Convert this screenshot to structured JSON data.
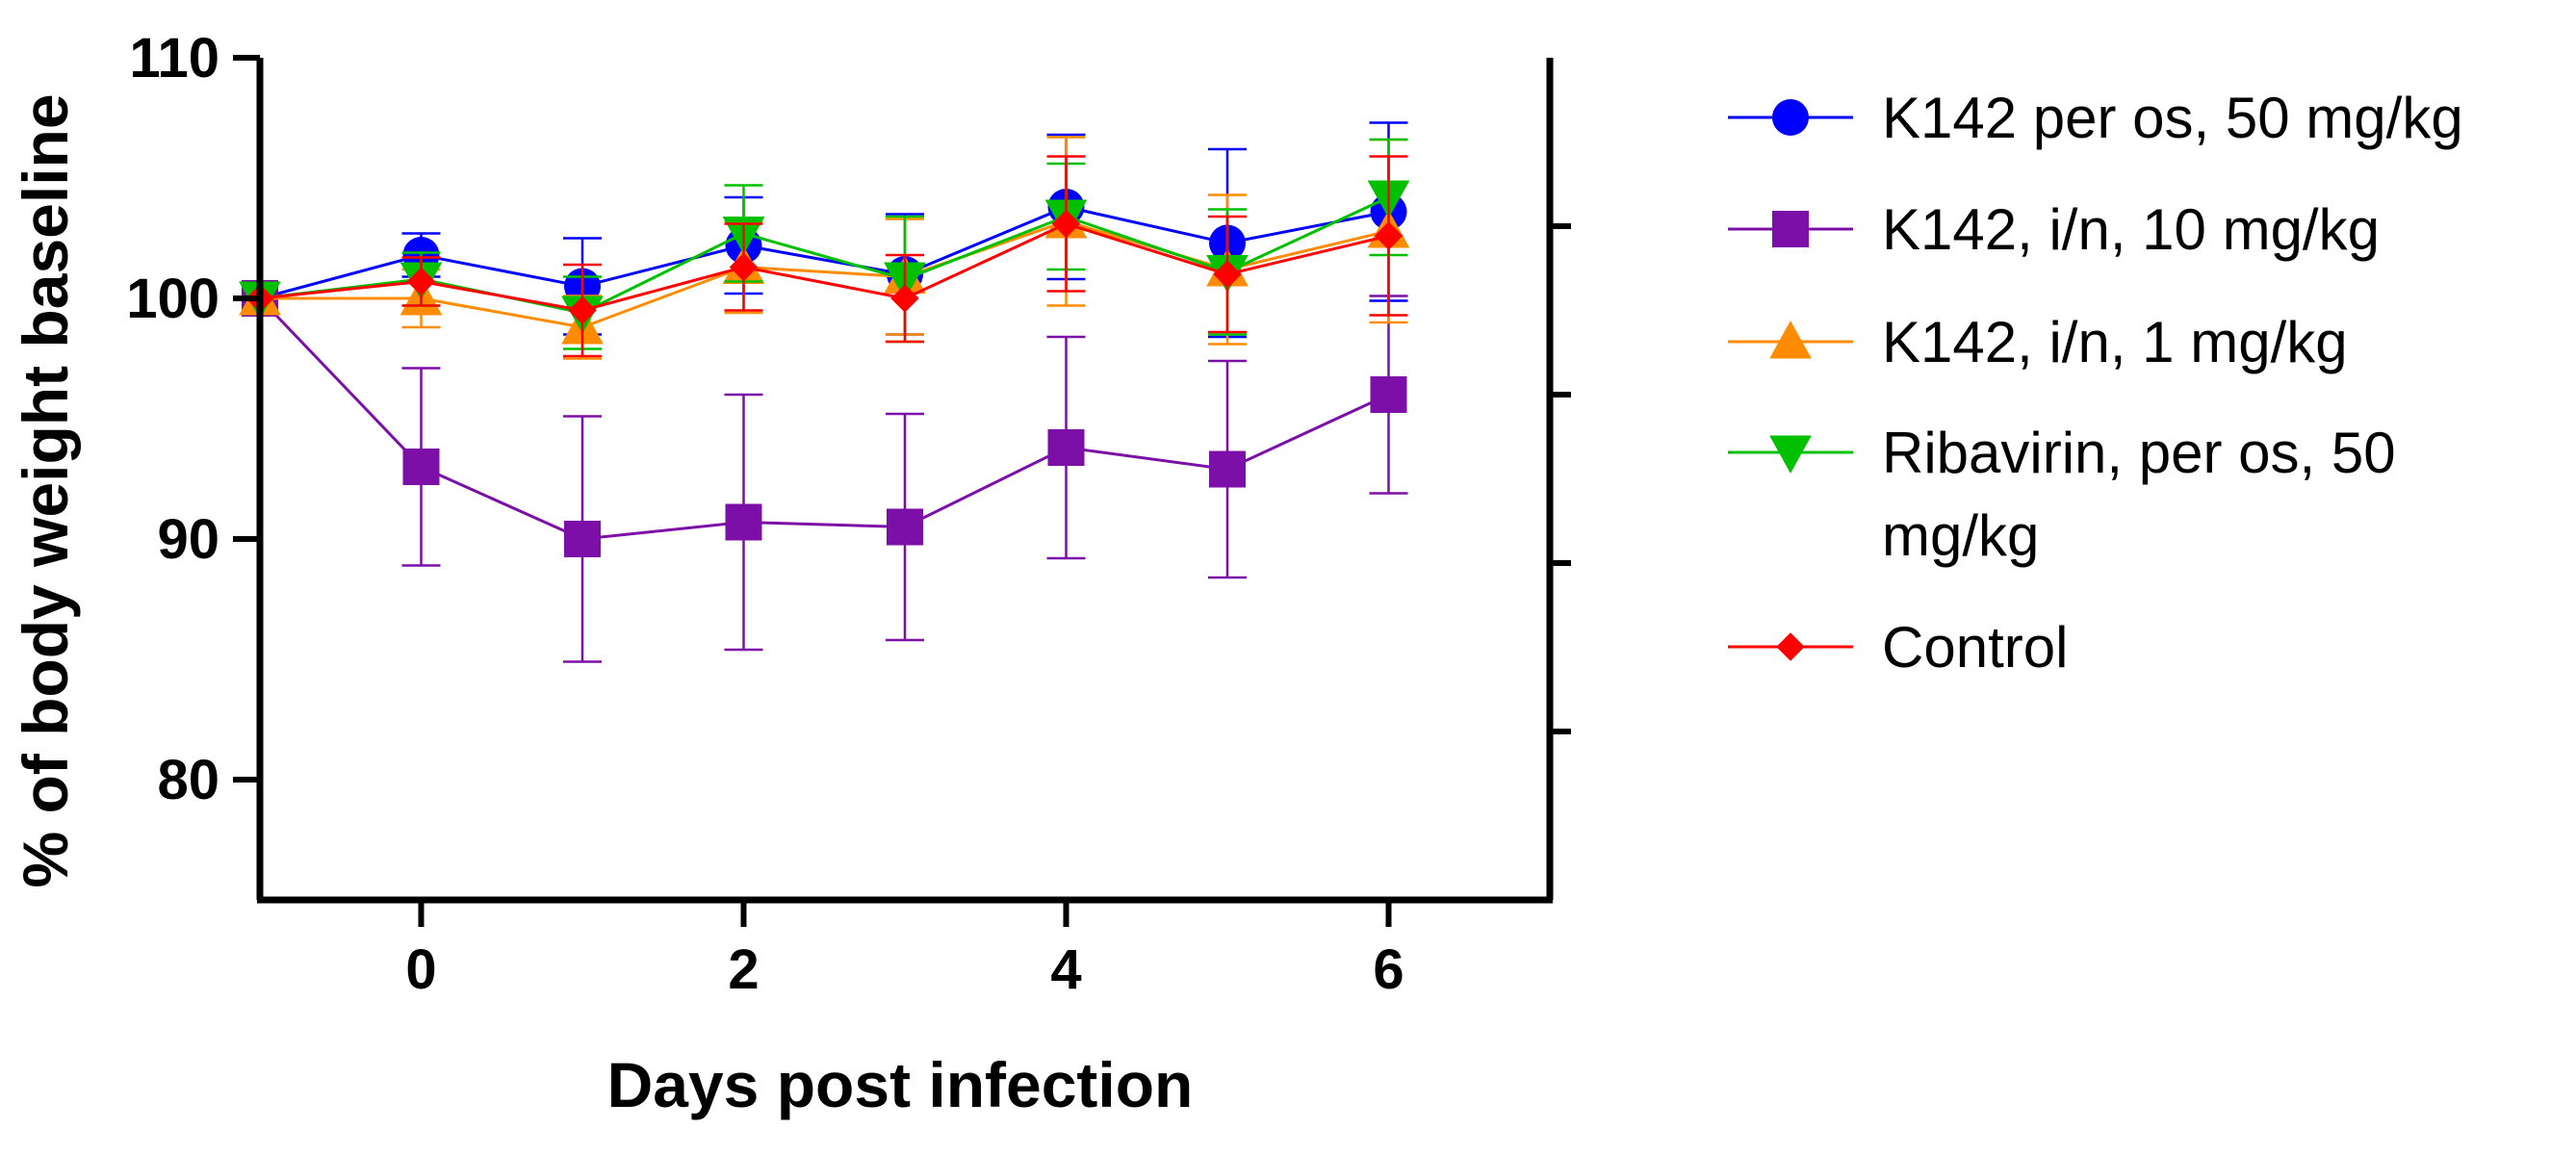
{
  "chart_data": {
    "type": "line",
    "title": "",
    "xlabel": "Days post infection",
    "ylabel": "% of body weight baseline",
    "xlim": [
      -1,
      7
    ],
    "ylim": [
      75,
      110
    ],
    "x_ticks": [
      0,
      2,
      4,
      6
    ],
    "y_ticks": [
      80,
      90,
      100,
      110
    ],
    "right_axis_ticks": [
      82,
      89,
      96,
      103
    ],
    "legend_position": "right",
    "x": [
      -1,
      0,
      1,
      2,
      3,
      4,
      5,
      6
    ],
    "series": [
      {
        "name": "K142 per os, 50 mg/kg",
        "color": "#0000FF",
        "marker": "circle",
        "values": [
          100,
          101.8,
          100.5,
          102.2,
          101.0,
          103.8,
          102.3,
          103.6
        ],
        "errors": [
          0,
          0.9,
          2.0,
          2.0,
          2.5,
          3.0,
          3.9,
          3.7
        ]
      },
      {
        "name": "K142, i/n, 10 mg/kg",
        "color": "#7B0FA8",
        "marker": "square",
        "values": [
          100,
          93.0,
          90.0,
          90.7,
          90.5,
          93.8,
          92.9,
          96.0
        ],
        "errors": [
          0,
          4.1,
          5.1,
          5.3,
          4.7,
          4.6,
          4.5,
          4.1
        ]
      },
      {
        "name": "K142, i/n, 1 mg/kg",
        "color": "#FF8C00",
        "marker": "triangle-up",
        "values": [
          100,
          100.0,
          98.8,
          101.3,
          100.9,
          103.2,
          101.2,
          102.8
        ],
        "errors": [
          0,
          1.2,
          1.3,
          1.9,
          2.4,
          3.5,
          3.1,
          3.8
        ]
      },
      {
        "name": "Ribavirin, per os, 50 mg/kg",
        "color": "#00C000",
        "marker": "triangle-down",
        "values": [
          100,
          100.8,
          99.4,
          102.7,
          100.8,
          103.4,
          101.1,
          104.2
        ],
        "errors": [
          0,
          1.1,
          1.5,
          2.0,
          2.6,
          2.2,
          2.6,
          2.4
        ]
      },
      {
        "name": "Control",
        "color": "#FF0000",
        "marker": "diamond",
        "values": [
          100,
          100.7,
          99.5,
          101.3,
          100.0,
          103.1,
          101.0,
          102.6
        ],
        "errors": [
          0,
          1.0,
          1.9,
          1.8,
          1.8,
          2.8,
          2.4,
          3.3
        ]
      }
    ]
  }
}
